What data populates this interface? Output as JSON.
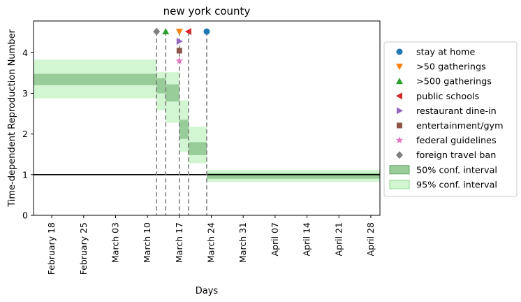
{
  "chart_data": {
    "type": "step",
    "title": "new york county",
    "xlabel": "Days",
    "ylabel": "Time-dependent Reproduction Number",
    "xlim": [
      "2020-02-14",
      "2020-04-30"
    ],
    "ylim": [
      0,
      4.78
    ],
    "x_ticks": [
      {
        "date": "2020-02-18",
        "label": "February 18"
      },
      {
        "date": "2020-02-25",
        "label": "February 25"
      },
      {
        "date": "2020-03-03",
        "label": "March 03"
      },
      {
        "date": "2020-03-10",
        "label": "March 10"
      },
      {
        "date": "2020-03-17",
        "label": "March 17"
      },
      {
        "date": "2020-03-24",
        "label": "March 24"
      },
      {
        "date": "2020-03-31",
        "label": "March 31"
      },
      {
        "date": "2020-04-07",
        "label": "April 07"
      },
      {
        "date": "2020-04-14",
        "label": "April 14"
      },
      {
        "date": "2020-04-21",
        "label": "April 21"
      },
      {
        "date": "2020-04-28",
        "label": "April 28"
      }
    ],
    "y_ticks": [
      0,
      1,
      2,
      3,
      4
    ],
    "reference_line": 1,
    "segments": [
      {
        "start": "2020-02-14",
        "end": "2020-03-12",
        "ci50": [
          3.2,
          3.48
        ],
        "ci95": [
          2.88,
          3.83
        ]
      },
      {
        "start": "2020-03-12",
        "end": "2020-03-14",
        "ci50": [
          3.0,
          3.37
        ],
        "ci95": [
          2.58,
          3.52
        ]
      },
      {
        "start": "2020-03-14",
        "end": "2020-03-17",
        "ci50": [
          2.8,
          3.22
        ],
        "ci95": [
          2.28,
          3.52
        ]
      },
      {
        "start": "2020-03-17",
        "end": "2020-03-19",
        "ci50": [
          1.88,
          2.35
        ],
        "ci95": [
          1.56,
          2.83
        ]
      },
      {
        "start": "2020-03-19",
        "end": "2020-03-23",
        "ci50": [
          1.48,
          1.8
        ],
        "ci95": [
          1.28,
          2.18
        ]
      },
      {
        "start": "2020-03-23",
        "end": "2020-04-30",
        "ci50": [
          0.9,
          1.04
        ],
        "ci95": [
          0.82,
          1.12
        ]
      }
    ],
    "interventions": [
      {
        "name": "foreign travel ban",
        "date": "2020-03-12",
        "y": 4.52,
        "marker": "diamond",
        "color": "#7f7f7f"
      },
      {
        "name": ">500 gatherings",
        "date": "2020-03-14",
        "y": 4.52,
        "marker": "triangle-up",
        "color": "#2ca02c"
      },
      {
        "name": ">50 gatherings",
        "date": "2020-03-17",
        "y": 4.52,
        "marker": "triangle-down",
        "color": "#ff7f0e"
      },
      {
        "name": "restaurant dine-in",
        "date": "2020-03-17",
        "y": 4.28,
        "marker": "triangle-right",
        "color": "#9467bd"
      },
      {
        "name": "entertainment/gym",
        "date": "2020-03-17",
        "y": 4.05,
        "marker": "square",
        "color": "#8c564b"
      },
      {
        "name": "federal guidelines",
        "date": "2020-03-17",
        "y": 3.8,
        "marker": "star",
        "color": "#e377c2"
      },
      {
        "name": "public schools",
        "date": "2020-03-19",
        "y": 4.52,
        "marker": "triangle-left",
        "color": "#d62728"
      },
      {
        "name": "stay at home",
        "date": "2020-03-23",
        "y": 4.52,
        "marker": "circle",
        "color": "#1f77b4"
      }
    ],
    "legend": {
      "placement": "right",
      "items": [
        {
          "label": "stay at home",
          "marker": "circle",
          "color": "#1f77b4"
        },
        {
          "label": ">50 gatherings",
          "marker": "triangle-down",
          "color": "#ff7f0e"
        },
        {
          "label": ">500 gatherings",
          "marker": "triangle-up",
          "color": "#2ca02c"
        },
        {
          "label": "public schools",
          "marker": "triangle-left",
          "color": "#d62728"
        },
        {
          "label": "restaurant dine-in",
          "marker": "triangle-right",
          "color": "#9467bd"
        },
        {
          "label": "entertainment/gym",
          "marker": "square",
          "color": "#8c564b"
        },
        {
          "label": "federal guidelines",
          "marker": "star",
          "color": "#e377c2"
        },
        {
          "label": "foreign travel ban",
          "marker": "diamond",
          "color": "#7f7f7f"
        },
        {
          "label": "50% conf. interval",
          "marker": "patch",
          "color": "#98cc98"
        },
        {
          "label": "95% conf. interval",
          "marker": "patch",
          "color": "#d2f5d2"
        }
      ]
    },
    "colors": {
      "ci50": "#98cc98",
      "ci50_edge": "#65a865",
      "ci95": "#d2f5d2",
      "median": "#90d490",
      "vline": "#7f7f7f"
    }
  }
}
